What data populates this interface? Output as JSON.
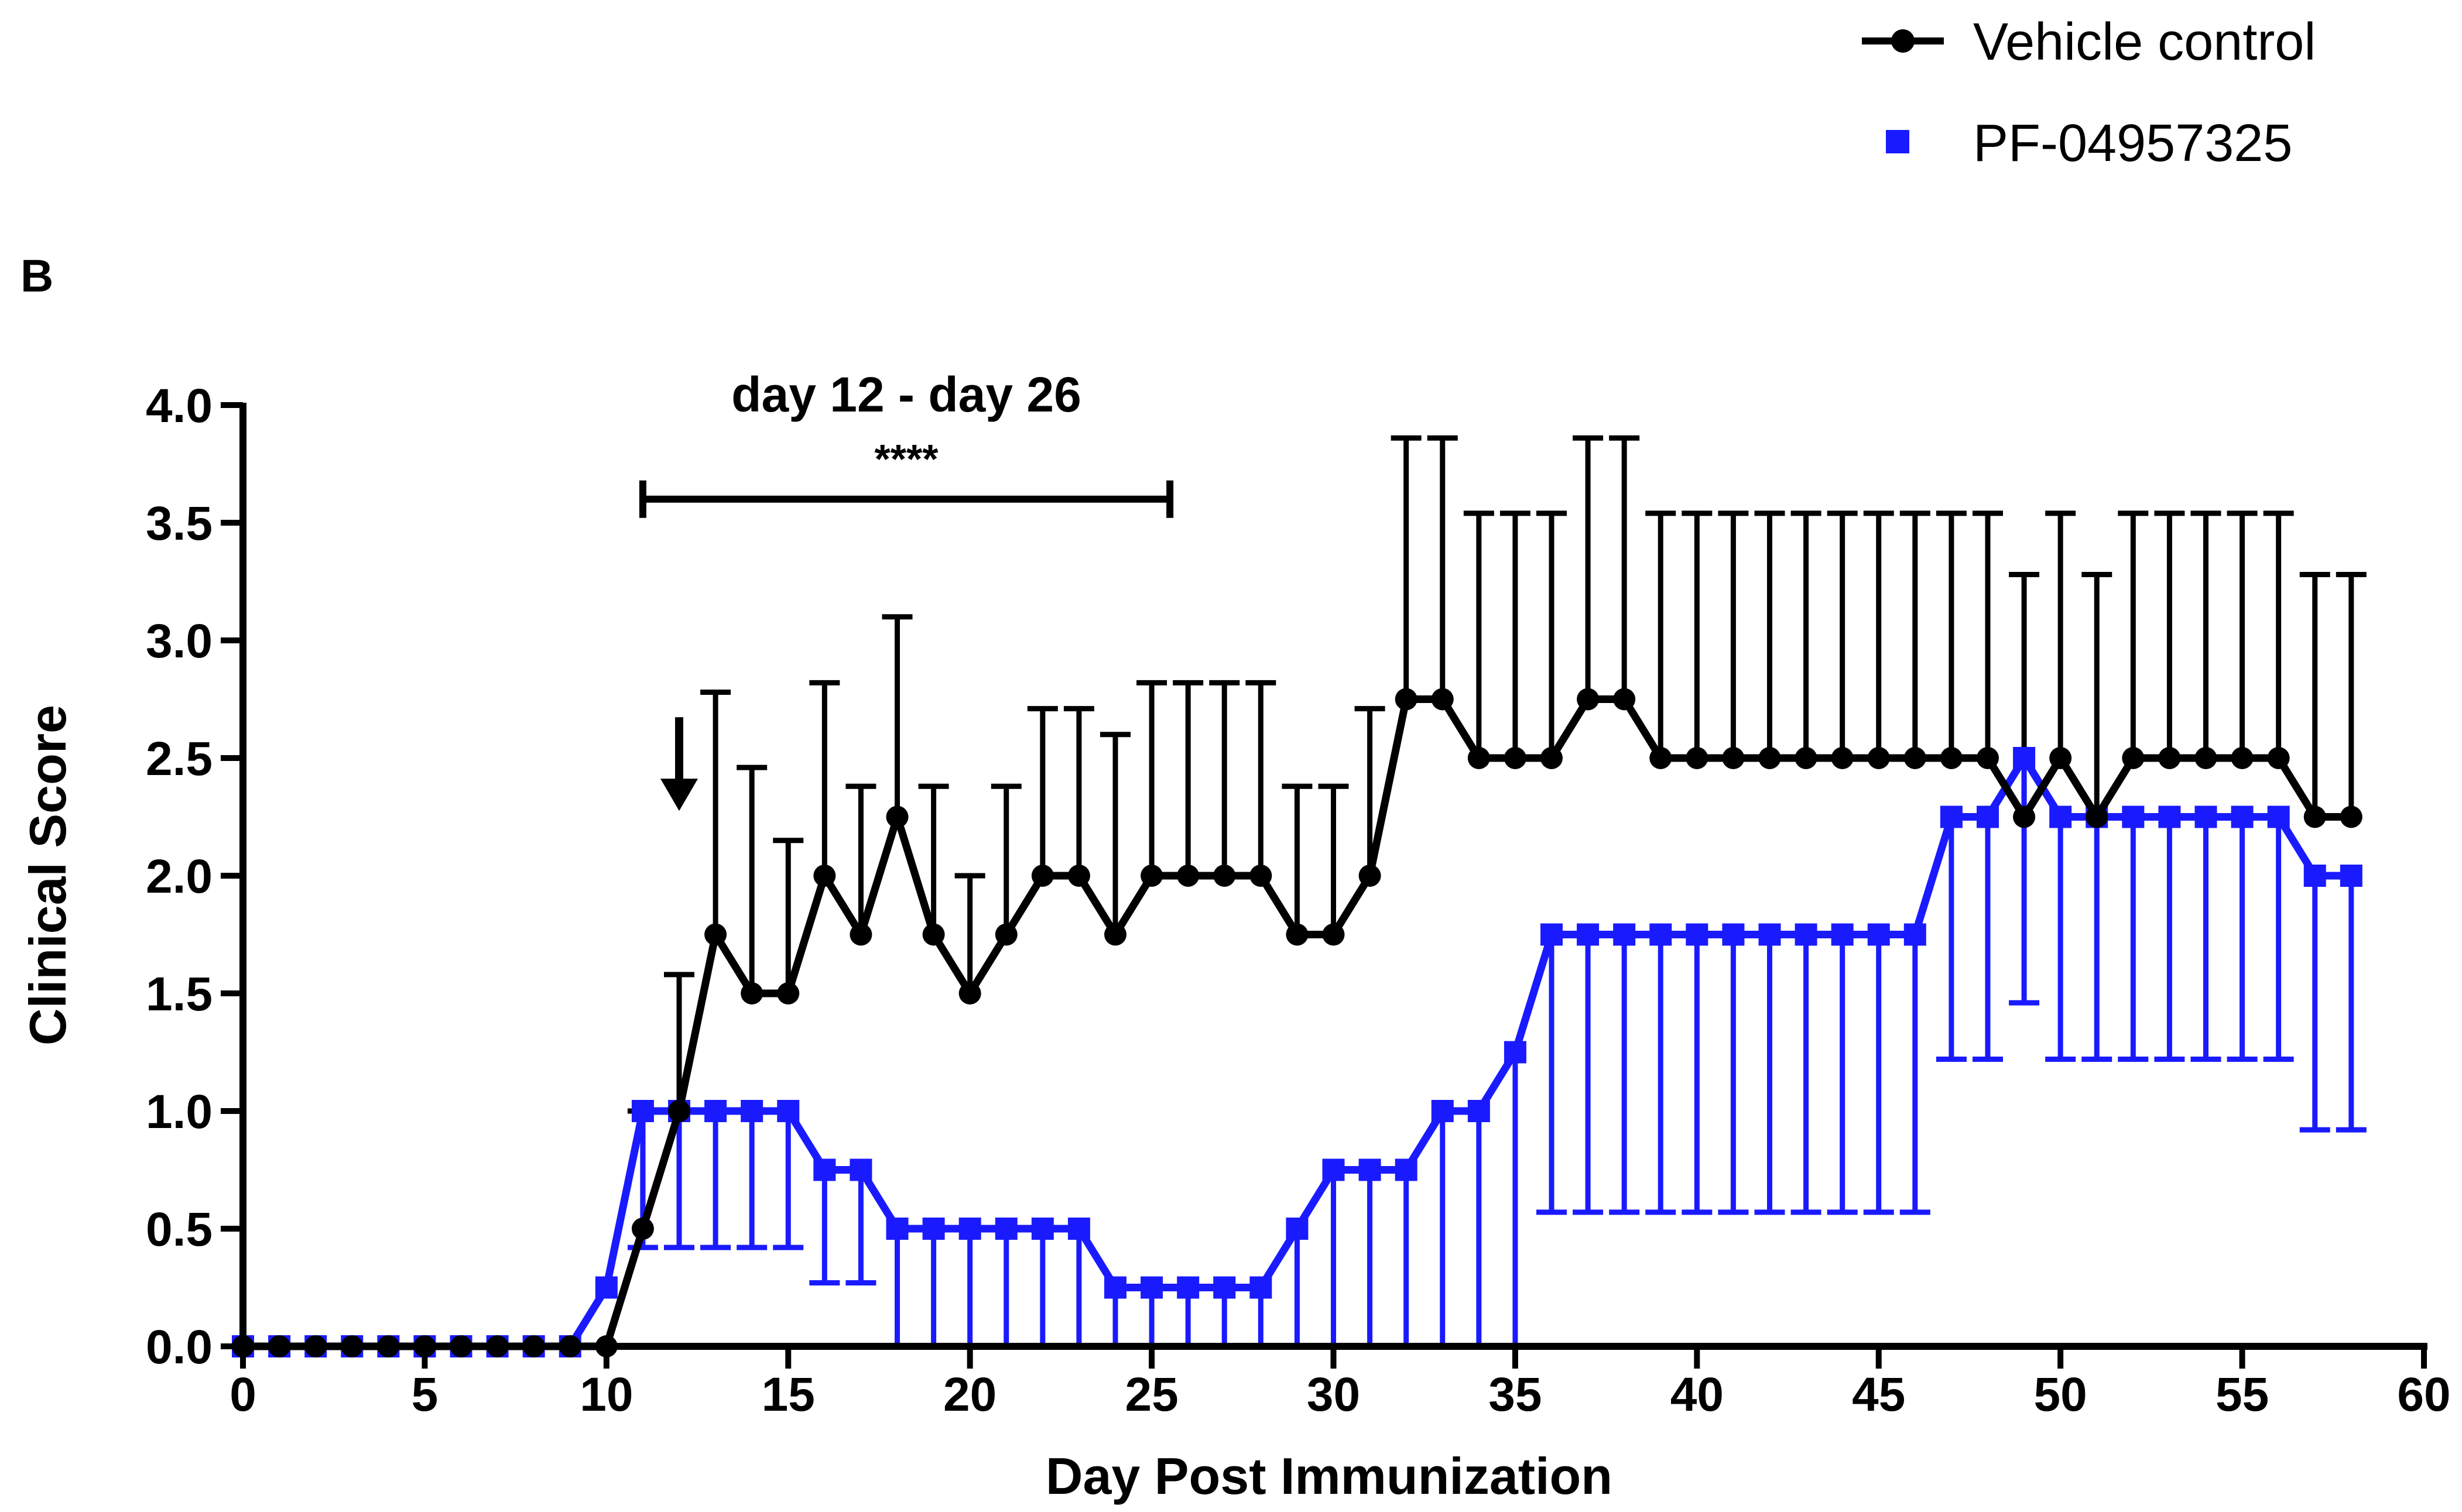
{
  "chart_data": {
    "type": "line",
    "panel_label": "B",
    "xlabel": "Day Post Immunization",
    "ylabel": "Clinical Score",
    "xlim": [
      0,
      60
    ],
    "ylim": [
      0,
      4.0
    ],
    "x_ticks": [
      0,
      5,
      10,
      15,
      20,
      25,
      30,
      35,
      40,
      45,
      50,
      55,
      60
    ],
    "x_tick_labels": [
      "0",
      "5",
      "10",
      "15",
      "20",
      "25",
      "30",
      "35",
      "40",
      "45",
      "50",
      "55",
      "60"
    ],
    "y_ticks": [
      0,
      0.5,
      1.0,
      1.5,
      2.0,
      2.5,
      3.0,
      3.5,
      4.0
    ],
    "y_tick_labels": [
      "0.0",
      "0.5",
      "1.0",
      "1.5",
      "2.0",
      "2.5",
      "3.0",
      "3.5",
      "4.0"
    ],
    "grid": false,
    "legend_position": "top-right",
    "annotations": {
      "range_label": "day 12 -  day 26",
      "significance": "****",
      "bracket_x": [
        11,
        25.5
      ],
      "bracket_y": 3.6,
      "arrow_x": 12,
      "arrow_y": 2.4
    },
    "x": [
      0,
      1,
      2,
      3,
      4,
      5,
      6,
      7,
      8,
      9,
      10,
      11,
      12,
      13,
      14,
      15,
      16,
      17,
      18,
      19,
      20,
      21,
      22,
      23,
      24,
      25,
      26,
      27,
      28,
      29,
      30,
      31,
      32,
      33,
      34,
      35,
      36,
      37,
      38,
      39,
      40,
      41,
      42,
      43,
      44,
      45,
      46,
      47,
      48,
      49,
      50,
      51,
      52,
      53,
      54,
      55,
      56,
      57,
      58
    ],
    "series": [
      {
        "name": "Vehicle control",
        "color": "#000000",
        "marker": "circle",
        "error_direction": "up",
        "values": [
          0,
          0,
          0,
          0,
          0,
          0,
          0,
          0,
          0,
          0,
          0,
          0.5,
          1.0,
          1.75,
          1.5,
          1.5,
          2.0,
          1.75,
          2.25,
          1.75,
          1.5,
          1.75,
          2.0,
          2.0,
          1.75,
          2.0,
          2.0,
          2.0,
          2.0,
          1.75,
          1.75,
          2.0,
          2.75,
          2.75,
          2.5,
          2.5,
          2.5,
          2.75,
          2.75,
          2.5,
          2.5,
          2.5,
          2.5,
          2.5,
          2.5,
          2.5,
          2.5,
          2.5,
          2.5,
          2.25,
          2.5,
          2.25,
          2.5,
          2.5,
          2.5,
          2.5,
          2.5,
          2.25,
          2.25
        ],
        "errors": [
          0,
          0,
          0,
          0,
          0,
          0,
          0,
          0,
          0,
          0,
          0,
          0.5,
          0.58,
          1.03,
          0.96,
          0.65,
          0.82,
          0.63,
          0.85,
          0.63,
          0.5,
          0.63,
          0.71,
          0.71,
          0.85,
          0.82,
          0.82,
          0.82,
          0.82,
          0.63,
          0.63,
          0.71,
          1.11,
          1.11,
          1.04,
          1.04,
          1.04,
          1.11,
          1.11,
          1.04,
          1.04,
          1.04,
          1.04,
          1.04,
          1.04,
          1.04,
          1.04,
          1.04,
          1.04,
          1.03,
          1.04,
          1.03,
          1.04,
          1.04,
          1.04,
          1.04,
          1.04,
          1.03,
          1.03
        ]
      },
      {
        "name": "PF-04957325",
        "color": "#1a1aff",
        "marker": "square",
        "error_direction": "down",
        "values": [
          0,
          0,
          0,
          0,
          0,
          0,
          0,
          0,
          0,
          0,
          0.25,
          1.0,
          1.0,
          1.0,
          1.0,
          1.0,
          0.75,
          0.75,
          0.5,
          0.5,
          0.5,
          0.5,
          0.5,
          0.5,
          0.25,
          0.25,
          0.25,
          0.25,
          0.25,
          0.5,
          0.75,
          0.75,
          0.75,
          1.0,
          1.0,
          1.25,
          1.75,
          1.75,
          1.75,
          1.75,
          1.75,
          1.75,
          1.75,
          1.75,
          1.75,
          1.75,
          1.75,
          2.25,
          2.25,
          2.5,
          2.25,
          2.25,
          2.25,
          2.25,
          2.25,
          2.25,
          2.25,
          2.0,
          2.0
        ],
        "errors": [
          0,
          0,
          0,
          0,
          0,
          0,
          0,
          0,
          0,
          0,
          0,
          0.58,
          0.58,
          0.58,
          0.58,
          0.58,
          0.48,
          0.48,
          0.58,
          0.58,
          0.58,
          0.58,
          0.58,
          0.58,
          0.5,
          0.5,
          0.5,
          0.5,
          0.5,
          0.58,
          0.75,
          0.75,
          0.75,
          1.0,
          1.0,
          1.25,
          1.18,
          1.18,
          1.18,
          1.18,
          1.18,
          1.18,
          1.18,
          1.18,
          1.18,
          1.18,
          1.18,
          1.03,
          1.03,
          1.04,
          1.03,
          1.03,
          1.03,
          1.03,
          1.03,
          1.03,
          1.03,
          1.08,
          1.08
        ]
      }
    ]
  }
}
